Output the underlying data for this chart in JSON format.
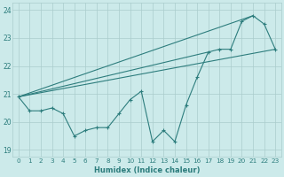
{
  "xlabel": "Humidex (Indice chaleur)",
  "ylabel": "",
  "bg_color": "#cceaea",
  "grid_color": "#aacccc",
  "line_color": "#2d7d7d",
  "xlim": [
    -0.5,
    23.5
  ],
  "ylim": [
    18.75,
    24.25
  ],
  "yticks": [
    19,
    20,
    21,
    22,
    23,
    24
  ],
  "xticks": [
    0,
    1,
    2,
    3,
    4,
    5,
    6,
    7,
    8,
    9,
    10,
    11,
    12,
    13,
    14,
    15,
    16,
    17,
    18,
    19,
    20,
    21,
    22,
    23
  ],
  "main_x": [
    0,
    1,
    2,
    3,
    4,
    5,
    6,
    7,
    8,
    9,
    10,
    11,
    12,
    13,
    14,
    15,
    16,
    17,
    18,
    19,
    20,
    21,
    22,
    23
  ],
  "main_y": [
    20.9,
    20.4,
    20.4,
    20.5,
    20.3,
    19.5,
    19.7,
    19.8,
    19.8,
    20.3,
    20.8,
    21.1,
    19.3,
    19.7,
    19.3,
    20.6,
    21.6,
    22.5,
    22.6,
    22.6,
    23.6,
    23.8,
    23.5,
    22.6
  ],
  "trend_lines": [
    {
      "x0": 0,
      "y0": 20.9,
      "x1": 23,
      "y1": 22.6
    },
    {
      "x0": 0,
      "y0": 20.9,
      "x1": 21,
      "y1": 23.8
    },
    {
      "x0": 0,
      "y0": 20.9,
      "x1": 17,
      "y1": 22.5
    }
  ]
}
